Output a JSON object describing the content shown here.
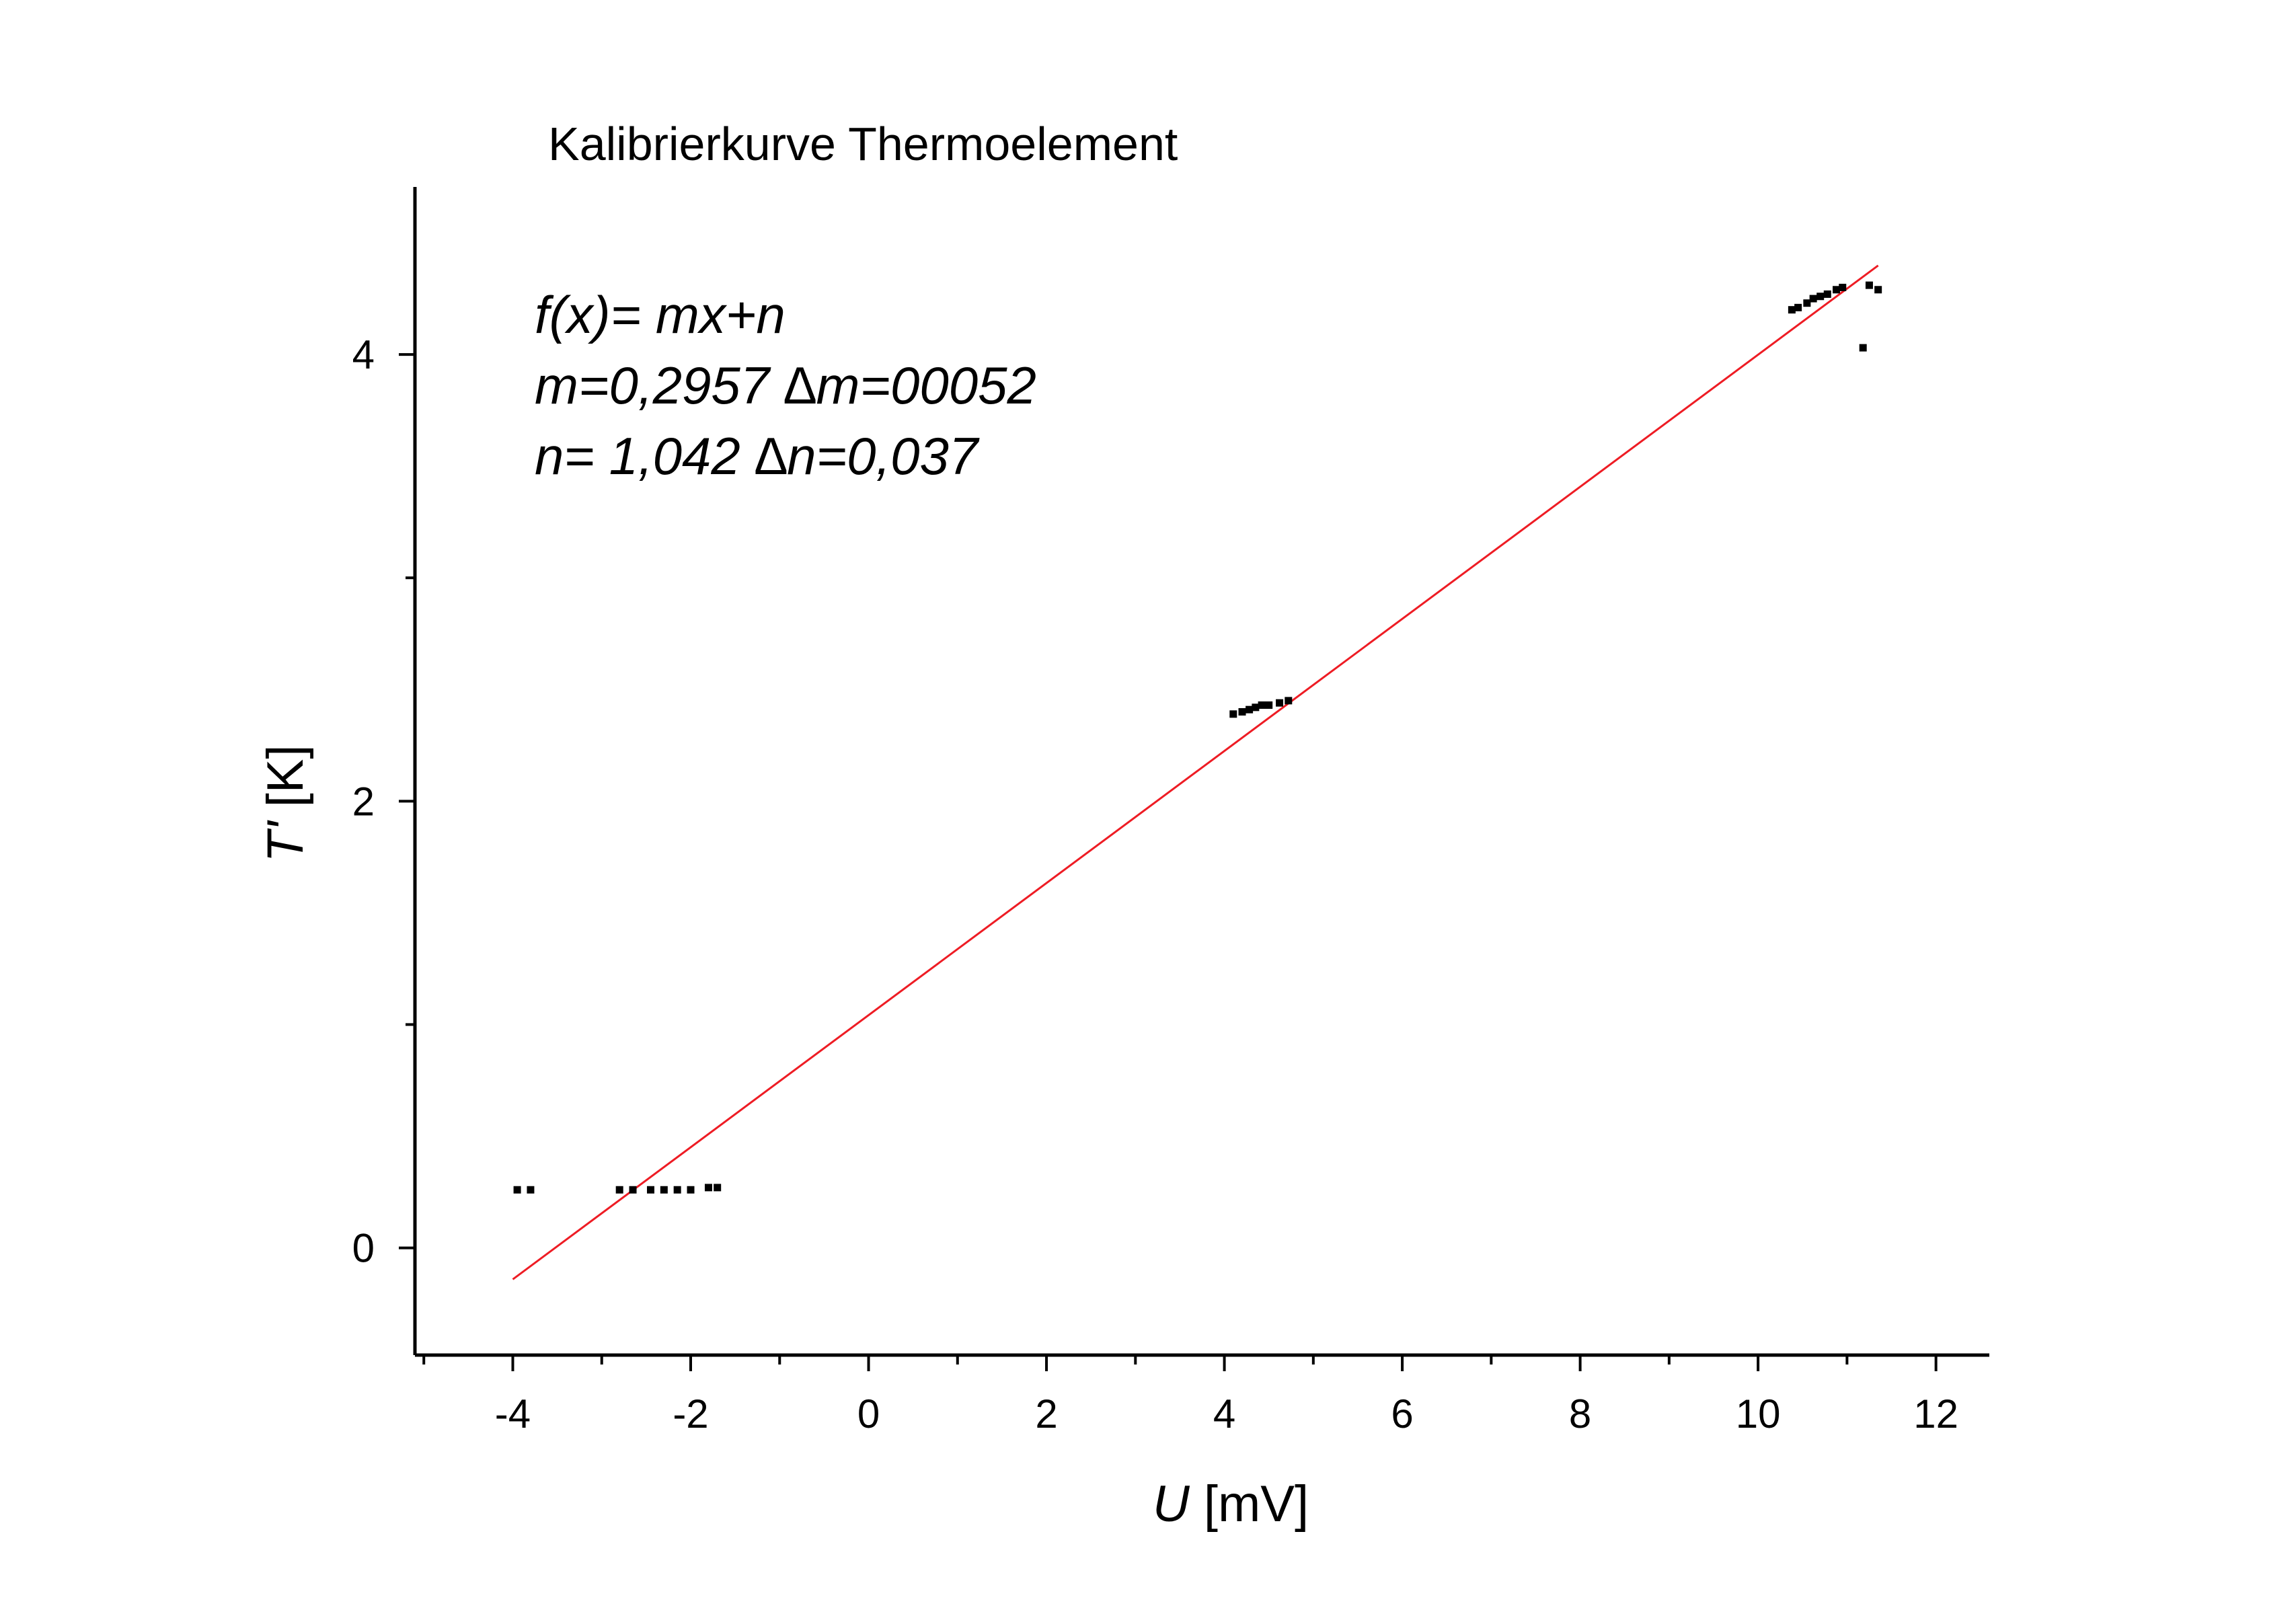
{
  "chart_data": {
    "type": "scatter",
    "title": "Kalibrierkurve Thermoelement",
    "xlabel_var": "U",
    "xlabel_unit": " [mV]",
    "ylabel_var": "T'",
    "ylabel_unit": " [K]",
    "xlim": [
      -5.1,
      12.6
    ],
    "ylim": [
      -0.48,
      4.75
    ],
    "x_major_ticks": [
      -4,
      -2,
      0,
      2,
      4,
      6,
      8,
      10,
      12
    ],
    "x_tick_labels": [
      "-4",
      "-2",
      "0",
      "2",
      "4",
      "6",
      "8",
      "10",
      "12"
    ],
    "x_minor_ticks": [
      -5,
      -3,
      -1,
      1,
      3,
      5,
      7,
      9,
      11
    ],
    "y_major_ticks": [
      0,
      2,
      4
    ],
    "y_tick_labels": [
      "0",
      "2",
      "4"
    ],
    "y_minor_ticks": [
      1,
      3
    ],
    "grid": false,
    "legend": "none",
    "annotation_lines": [
      "f(x)= mx+n",
      "m=0,2957 ∆m=00052",
      "n= 1,042   ∆n=0,037"
    ],
    "fit": {
      "m": 0.2957,
      "n": 1.042,
      "x_range": [
        -4.0,
        11.35
      ],
      "color": "#ee1c24"
    },
    "points": {
      "color": "#000000",
      "x": [
        -3.95,
        -3.8,
        -2.8,
        -2.65,
        -2.45,
        -2.3,
        -2.15,
        -2.0,
        -1.8,
        -1.7,
        4.1,
        4.2,
        4.28,
        4.35,
        4.42,
        4.5,
        4.62,
        4.72,
        10.38,
        10.45,
        10.55,
        10.62,
        10.7,
        10.78,
        10.88,
        10.95,
        11.18,
        11.25,
        11.35
      ],
      "y": [
        0.26,
        0.26,
        0.26,
        0.26,
        0.26,
        0.26,
        0.26,
        0.26,
        0.27,
        0.27,
        2.39,
        2.4,
        2.41,
        2.42,
        2.43,
        2.43,
        2.44,
        2.45,
        4.2,
        4.21,
        4.23,
        4.25,
        4.26,
        4.27,
        4.29,
        4.3,
        4.03,
        4.31,
        4.29
      ]
    }
  }
}
